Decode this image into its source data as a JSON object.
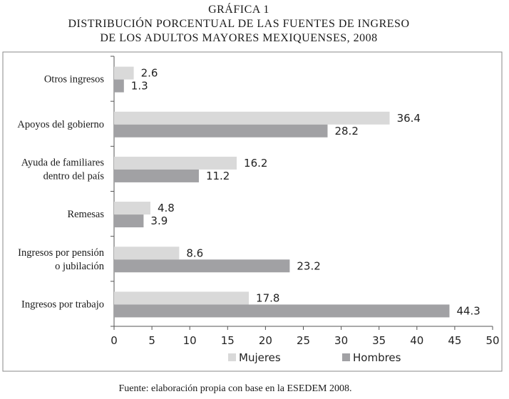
{
  "title": {
    "line1": "GRÁFICA 1",
    "line2": "DISTRIBUCIÓN PORCENTUAL DE LAS FUENTES DE INGRESO",
    "line3": "DE LOS ADULTOS MAYORES MEXIQUENSES, 2008"
  },
  "source": "Fuente: elaboración propia con base en la ESEDEM 2008.",
  "colors": {
    "mujeres": "#d9d9d9",
    "hombres": "#a1a1a4",
    "axis": "#555555",
    "frame": "#8a8a8a"
  },
  "chart_data": {
    "type": "bar",
    "orientation": "horizontal",
    "categories": [
      [
        "Otros ingresos"
      ],
      [
        "Apoyos del gobierno"
      ],
      [
        "Ayuda de  familiares",
        "dentro del país"
      ],
      [
        "Remesas"
      ],
      [
        "Ingresos por pensión",
        "o jubilación"
      ],
      [
        "Ingresos por trabajo"
      ]
    ],
    "series": [
      {
        "name": "Mujeres",
        "values": [
          2.6,
          36.4,
          16.2,
          4.8,
          8.6,
          17.8
        ]
      },
      {
        "name": "Hombres",
        "values": [
          1.3,
          28.2,
          11.2,
          3.9,
          23.2,
          44.3
        ]
      }
    ],
    "xlim": [
      0,
      50
    ],
    "xticks": [
      0,
      5,
      10,
      15,
      20,
      25,
      30,
      35,
      40,
      45,
      50
    ],
    "grid": false,
    "legend": "bottom"
  }
}
